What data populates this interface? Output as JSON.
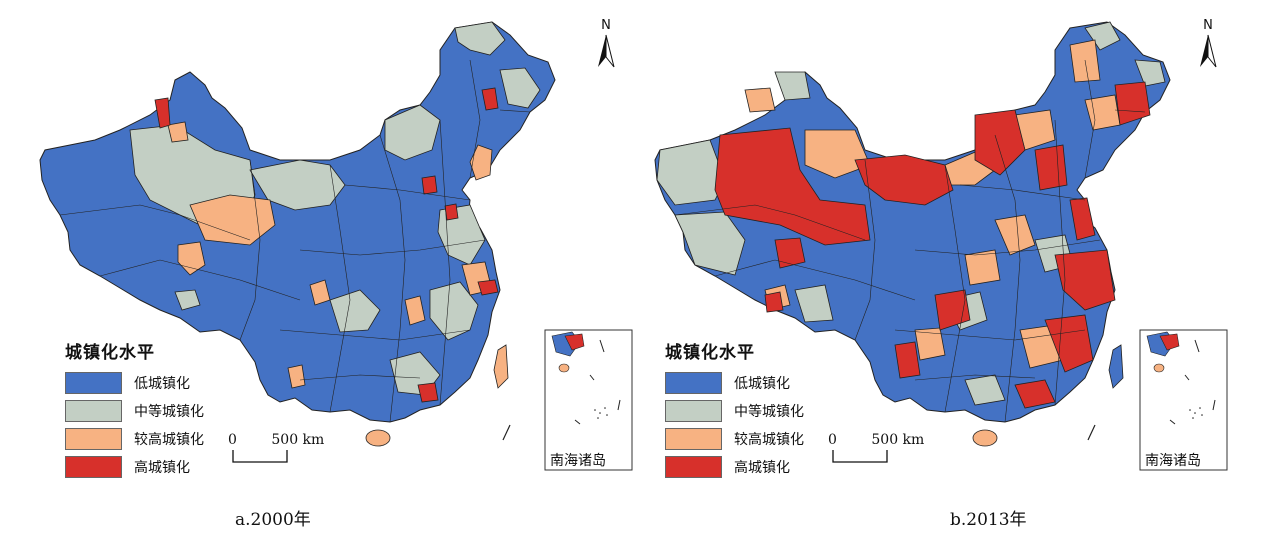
{
  "colors": {
    "low": "#4472c4",
    "medium": "#c3cfc4",
    "high_mid": "#f7b282",
    "high": "#d7302b",
    "border": "#222222"
  },
  "legend": {
    "title": "城镇化水平",
    "items": [
      {
        "label": "低城镇化",
        "color_key": "low"
      },
      {
        "label": "中等城镇化",
        "color_key": "medium"
      },
      {
        "label": "较高城镇化",
        "color_key": "high_mid"
      },
      {
        "label": "高城镇化",
        "color_key": "high"
      }
    ]
  },
  "scale": {
    "zero": "0",
    "distance": "500 km"
  },
  "north_arrow": "N",
  "inset_label": "南海诸岛",
  "maps": [
    {
      "caption": "a.2000年"
    },
    {
      "caption": "b.2013年"
    }
  ]
}
